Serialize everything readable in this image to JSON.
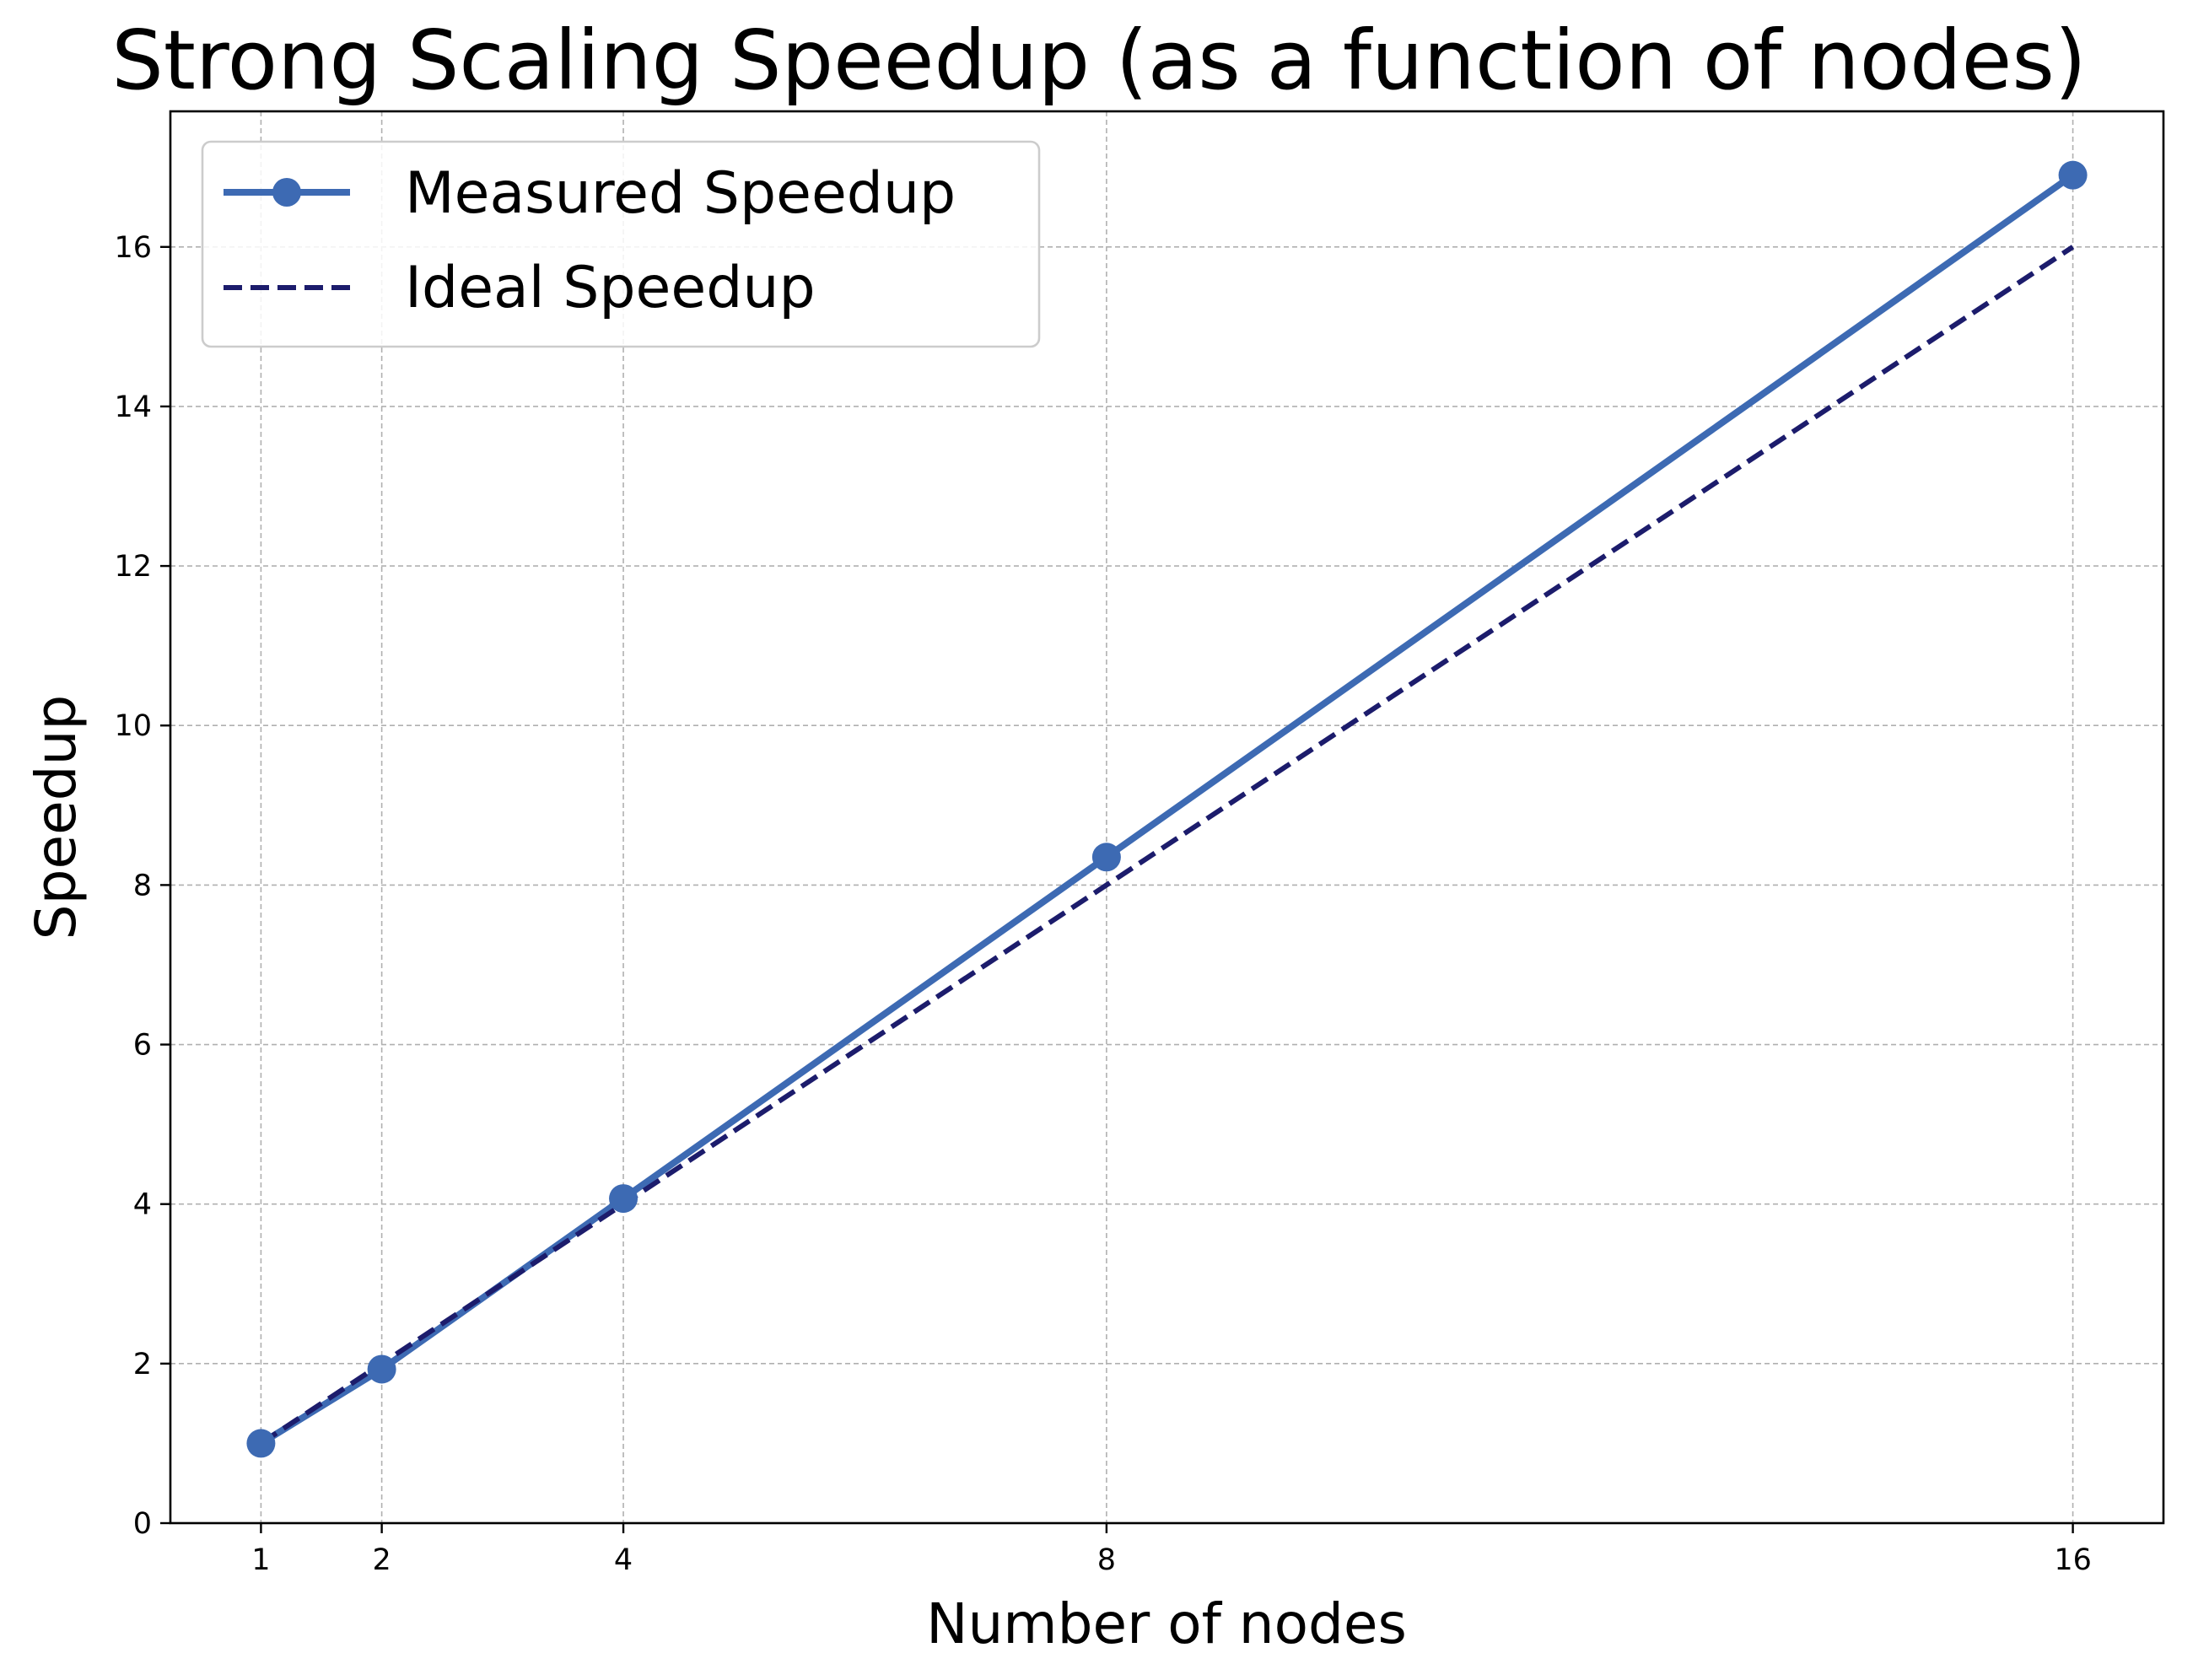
{
  "chart_data": {
    "type": "line",
    "title": "Strong Scaling Speedup (as a function of nodes)",
    "xlabel": "Number of nodes",
    "ylabel": "Speedup",
    "x": [
      1,
      2,
      4,
      8,
      16
    ],
    "xticks": [
      "1",
      "2",
      "4",
      "8",
      "16"
    ],
    "yticks": [
      "0",
      "2",
      "4",
      "6",
      "8",
      "10",
      "12",
      "14",
      "16"
    ],
    "xlim": [
      0.25,
      16.75
    ],
    "ylim": [
      0,
      17.7
    ],
    "grid": true,
    "legend_position": "top-left",
    "series": [
      {
        "name": "Measured Speedup",
        "values": [
          1.0,
          1.93,
          4.07,
          8.35,
          16.9
        ],
        "color": "#3d6ab3",
        "style": "solid",
        "marker": "circle"
      },
      {
        "name": "Ideal Speedup",
        "values": [
          1,
          2,
          4,
          8,
          16
        ],
        "color": "#1c1c6c",
        "style": "dashed",
        "marker": "none"
      }
    ]
  }
}
